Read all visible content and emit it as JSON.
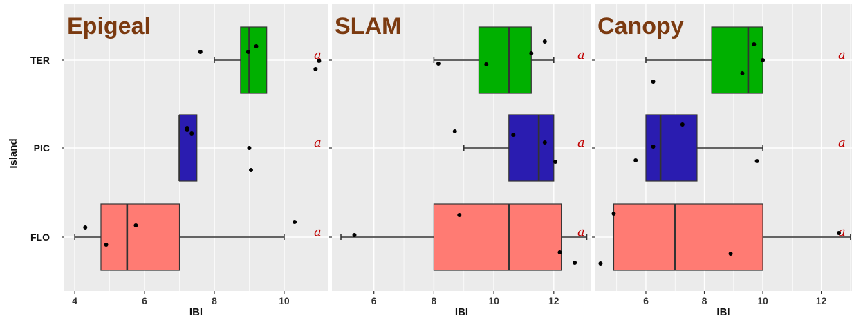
{
  "figure": {
    "ylabel": "Island",
    "title_color": "#7B3A10",
    "letter_color": "#C00000",
    "panel_bg": "#EBEBEB",
    "grid_color": "#FFFFFF"
  },
  "chart_data": [
    {
      "type": "box",
      "title": "Epigeal",
      "xlabel": "IBI",
      "ylabel": "Island",
      "xlim": [
        3.7,
        11.25
      ],
      "xticks": [
        4,
        6,
        8,
        10
      ],
      "xtick_labels": [
        "4",
        "6",
        "8",
        "10"
      ],
      "categories": [
        "TER",
        "PIC",
        "FLO"
      ],
      "grid": true,
      "boxes": [
        {
          "name": "TER",
          "color": "#00B000",
          "whisker_low": 8.0,
          "q1": 8.75,
          "median": 9.0,
          "q3": 9.5,
          "whisker_high": 9.5,
          "letter": "a"
        },
        {
          "name": "PIC",
          "color": "#2A1CB0",
          "whisker_low": 7.0,
          "q1": 7.0,
          "median": 7.0,
          "q3": 7.5,
          "whisker_high": 7.5,
          "letter": "a"
        },
        {
          "name": "FLO",
          "color": "#FF7B73",
          "whisker_low": 4.0,
          "q1": 4.75,
          "median": 5.5,
          "q3": 7.0,
          "whisker_high": 10.0,
          "letter": "a"
        }
      ],
      "points": [
        {
          "group": "TER",
          "x": 7.6,
          "jitter": 0.12
        },
        {
          "group": "TER",
          "x": 8.97,
          "jitter": 0.12
        },
        {
          "group": "TER",
          "x": 9.2,
          "jitter": 0.2
        },
        {
          "group": "TER",
          "x": 11.0,
          "jitter": -0.01
        },
        {
          "group": "TER",
          "x": 10.9,
          "jitter": -0.13
        },
        {
          "group": "PIC",
          "x": 7.22,
          "jitter": 0.29
        },
        {
          "group": "PIC",
          "x": 7.22,
          "jitter": 0.26
        },
        {
          "group": "PIC",
          "x": 7.35,
          "jitter": 0.21
        },
        {
          "group": "PIC",
          "x": 9.0,
          "jitter": 0.0
        },
        {
          "group": "PIC",
          "x": 9.05,
          "jitter": -0.32
        },
        {
          "group": "FLO",
          "x": 4.3,
          "jitter": 0.14
        },
        {
          "group": "FLO",
          "x": 4.9,
          "jitter": -0.11
        },
        {
          "group": "FLO",
          "x": 5.75,
          "jitter": 0.17
        },
        {
          "group": "FLO",
          "x": 10.3,
          "jitter": 0.22
        }
      ]
    },
    {
      "type": "box",
      "title": "SLAM",
      "xlabel": "IBI",
      "xlim": [
        4.6,
        13.25
      ],
      "xticks": [
        6,
        8,
        10,
        12
      ],
      "xtick_labels": [
        "6",
        "8",
        "10",
        "12"
      ],
      "categories": [
        "TER",
        "PIC",
        "FLO"
      ],
      "grid": true,
      "boxes": [
        {
          "name": "TER",
          "color": "#00B000",
          "whisker_low": 8.0,
          "q1": 9.5,
          "median": 10.5,
          "q3": 11.25,
          "whisker_high": 12.0,
          "letter": "a"
        },
        {
          "name": "PIC",
          "color": "#2A1CB0",
          "whisker_low": 9.0,
          "q1": 10.5,
          "median": 11.5,
          "q3": 12.0,
          "whisker_high": 12.0,
          "letter": "a"
        },
        {
          "name": "FLO",
          "color": "#FF7B73",
          "whisker_low": 4.9,
          "q1": 8.0,
          "median": 10.5,
          "q3": 12.25,
          "whisker_high": 13.1,
          "letter": "a"
        }
      ],
      "points": [
        {
          "group": "TER",
          "x": 11.7,
          "jitter": 0.27
        },
        {
          "group": "TER",
          "x": 11.25,
          "jitter": 0.1
        },
        {
          "group": "TER",
          "x": 8.15,
          "jitter": -0.05
        },
        {
          "group": "TER",
          "x": 9.75,
          "jitter": -0.06
        },
        {
          "group": "PIC",
          "x": 8.7,
          "jitter": 0.24
        },
        {
          "group": "PIC",
          "x": 10.65,
          "jitter": 0.19
        },
        {
          "group": "PIC",
          "x": 11.7,
          "jitter": 0.08
        },
        {
          "group": "PIC",
          "x": 12.05,
          "jitter": -0.2
        },
        {
          "group": "FLO",
          "x": 5.35,
          "jitter": 0.03
        },
        {
          "group": "FLO",
          "x": 8.85,
          "jitter": 0.32
        },
        {
          "group": "FLO",
          "x": 12.2,
          "jitter": -0.22
        },
        {
          "group": "FLO",
          "x": 12.7,
          "jitter": -0.37
        }
      ]
    },
    {
      "type": "box",
      "title": "Canopy",
      "xlabel": "IBI",
      "xlim": [
        4.25,
        13.05
      ],
      "xticks": [
        6,
        8,
        10,
        12
      ],
      "xtick_labels": [
        "6",
        "8",
        "10",
        "12"
      ],
      "categories": [
        "TER",
        "PIC",
        "FLO"
      ],
      "grid": true,
      "boxes": [
        {
          "name": "TER",
          "color": "#00B000",
          "whisker_low": 6.0,
          "q1": 8.25,
          "median": 9.5,
          "q3": 10.0,
          "whisker_high": 10.0,
          "letter": "a"
        },
        {
          "name": "PIC",
          "color": "#2A1CB0",
          "whisker_low": 6.0,
          "q1": 6.0,
          "median": 6.5,
          "q3": 7.75,
          "whisker_high": 10.0,
          "letter": "a"
        },
        {
          "name": "FLO",
          "color": "#FF7B73",
          "whisker_low": 4.9,
          "q1": 4.9,
          "median": 7.0,
          "q3": 10.0,
          "whisker_high": 13.0,
          "letter": "a"
        }
      ],
      "points": [
        {
          "group": "TER",
          "x": 9.7,
          "jitter": 0.23
        },
        {
          "group": "TER",
          "x": 10.0,
          "jitter": 0.0
        },
        {
          "group": "TER",
          "x": 9.3,
          "jitter": -0.19
        },
        {
          "group": "TER",
          "x": 6.25,
          "jitter": -0.31
        },
        {
          "group": "PIC",
          "x": 7.25,
          "jitter": 0.34
        },
        {
          "group": "PIC",
          "x": 6.25,
          "jitter": 0.02
        },
        {
          "group": "PIC",
          "x": 5.65,
          "jitter": -0.18
        },
        {
          "group": "PIC",
          "x": 9.8,
          "jitter": -0.19
        },
        {
          "group": "FLO",
          "x": 4.9,
          "jitter": 0.34
        },
        {
          "group": "FLO",
          "x": 12.6,
          "jitter": 0.06
        },
        {
          "group": "FLO",
          "x": 8.9,
          "jitter": -0.24
        },
        {
          "group": "FLO",
          "x": 4.45,
          "jitter": -0.38
        }
      ]
    }
  ]
}
